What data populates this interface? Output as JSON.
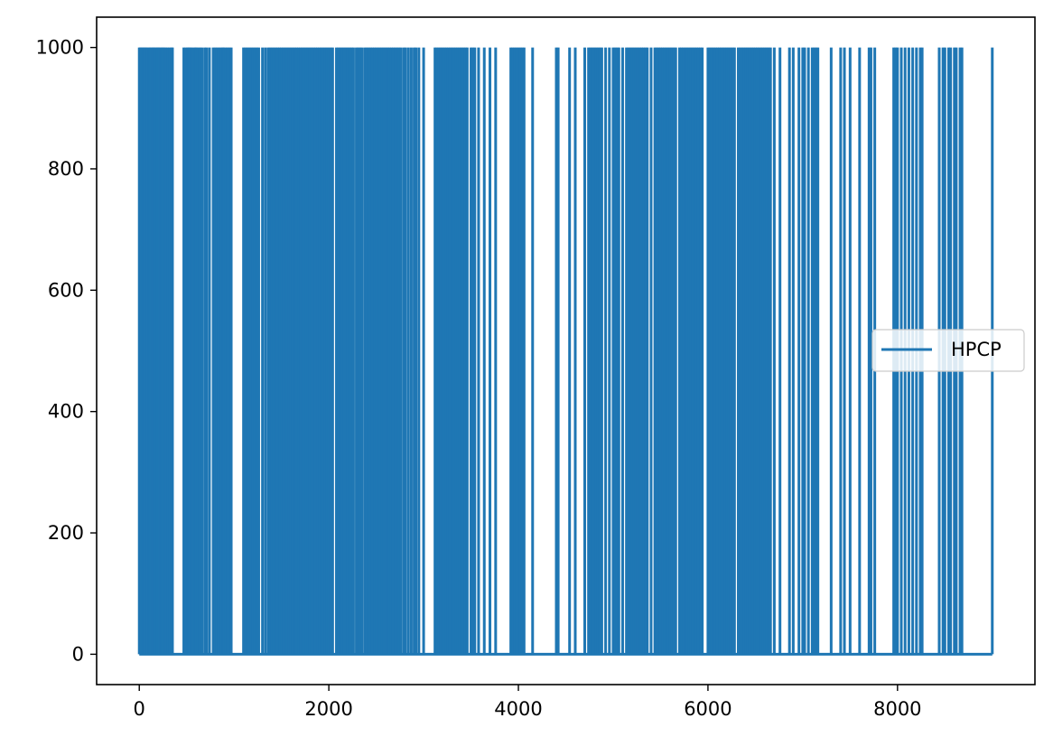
{
  "chart_data": {
    "type": "line",
    "title": "",
    "xlabel": "",
    "ylabel": "",
    "xlim": [
      -450,
      9450
    ],
    "ylim": [
      -50,
      1050
    ],
    "x_ticks": [
      0,
      2000,
      4000,
      6000,
      8000
    ],
    "x_tick_labels": [
      "0",
      "2000",
      "4000",
      "6000",
      "8000"
    ],
    "y_ticks": [
      0,
      200,
      400,
      600,
      800,
      1000
    ],
    "y_tick_labels": [
      "0",
      "200",
      "400",
      "600",
      "800",
      "1000"
    ],
    "grid": false,
    "legend_position": "center-right",
    "series": [
      {
        "name": "HPCP",
        "color": "#1f77b4",
        "x_range": [
          0,
          9000
        ],
        "value_levels": [
          0,
          1000
        ],
        "spikes_to_high_at_x": [
          0,
          12,
          20,
          35,
          45,
          55,
          70,
          80,
          100,
          110,
          125,
          140,
          150,
          160,
          175,
          190,
          200,
          210,
          225,
          240,
          250,
          265,
          280,
          300,
          320,
          340,
          350,
          470,
          490,
          510,
          520,
          535,
          550,
          570,
          590,
          600,
          620,
          640,
          660,
          690,
          710,
          740,
          780,
          800,
          820,
          840,
          860,
          880,
          890,
          910,
          930,
          950,
          970,
          1100,
          1120,
          1140,
          1160,
          1180,
          1200,
          1220,
          1240,
          1260,
          1300,
          1330,
          1360,
          1380,
          1400,
          1420,
          1440,
          1460,
          1480,
          1500,
          1520,
          1540,
          1560,
          1580,
          1600,
          1620,
          1640,
          1660,
          1680,
          1700,
          1720,
          1740,
          1760,
          1780,
          1800,
          1820,
          1840,
          1860,
          1880,
          1900,
          1920,
          1940,
          1960,
          1980,
          2000,
          2020,
          2040,
          2080,
          2100,
          2120,
          2140,
          2160,
          2180,
          2200,
          2220,
          2240,
          2260,
          2290,
          2310,
          2330,
          2350,
          2380,
          2400,
          2420,
          2440,
          2460,
          2480,
          2500,
          2520,
          2540,
          2560,
          2580,
          2600,
          2620,
          2640,
          2660,
          2680,
          2700,
          2720,
          2740,
          2760,
          2790,
          2810,
          2840,
          2870,
          2900,
          2920,
          2950,
          3000,
          3120,
          3140,
          3160,
          3180,
          3200,
          3220,
          3240,
          3260,
          3280,
          3300,
          3320,
          3340,
          3360,
          3380,
          3400,
          3420,
          3440,
          3460,
          3500,
          3520,
          3540,
          3580,
          3640,
          3700,
          3760,
          3920,
          3940,
          3960,
          3980,
          4000,
          4020,
          4040,
          4060,
          4150,
          4400,
          4420,
          4540,
          4600,
          4700,
          4740,
          4760,
          4780,
          4800,
          4820,
          4840,
          4860,
          4880,
          4920,
          4960,
          5000,
          5020,
          5040,
          5060,
          5100,
          5140,
          5160,
          5180,
          5200,
          5220,
          5240,
          5260,
          5280,
          5300,
          5320,
          5340,
          5360,
          5400,
          5440,
          5460,
          5480,
          5500,
          5520,
          5540,
          5560,
          5580,
          5600,
          5620,
          5640,
          5660,
          5700,
          5720,
          5740,
          5760,
          5780,
          5800,
          5820,
          5840,
          5860,
          5880,
          5900,
          5920,
          5940,
          6000,
          6020,
          6040,
          6060,
          6080,
          6100,
          6120,
          6140,
          6160,
          6180,
          6200,
          6220,
          6240,
          6260,
          6280,
          6320,
          6340,
          6360,
          6380,
          6400,
          6420,
          6440,
          6460,
          6480,
          6500,
          6520,
          6540,
          6560,
          6580,
          6600,
          6620,
          6640,
          6660,
          6700,
          6760,
          6860,
          6900,
          6960,
          7000,
          7020,
          7060,
          7100,
          7120,
          7140,
          7160,
          7300,
          7400,
          7440,
          7500,
          7600,
          7700,
          7720,
          7760,
          7960,
          7980,
          8000,
          8040,
          8080,
          8120,
          8160,
          8200,
          8240,
          8260,
          8440,
          8480,
          8500,
          8540,
          8560,
          8600,
          8620,
          8660,
          8680,
          9000
        ]
      }
    ]
  }
}
